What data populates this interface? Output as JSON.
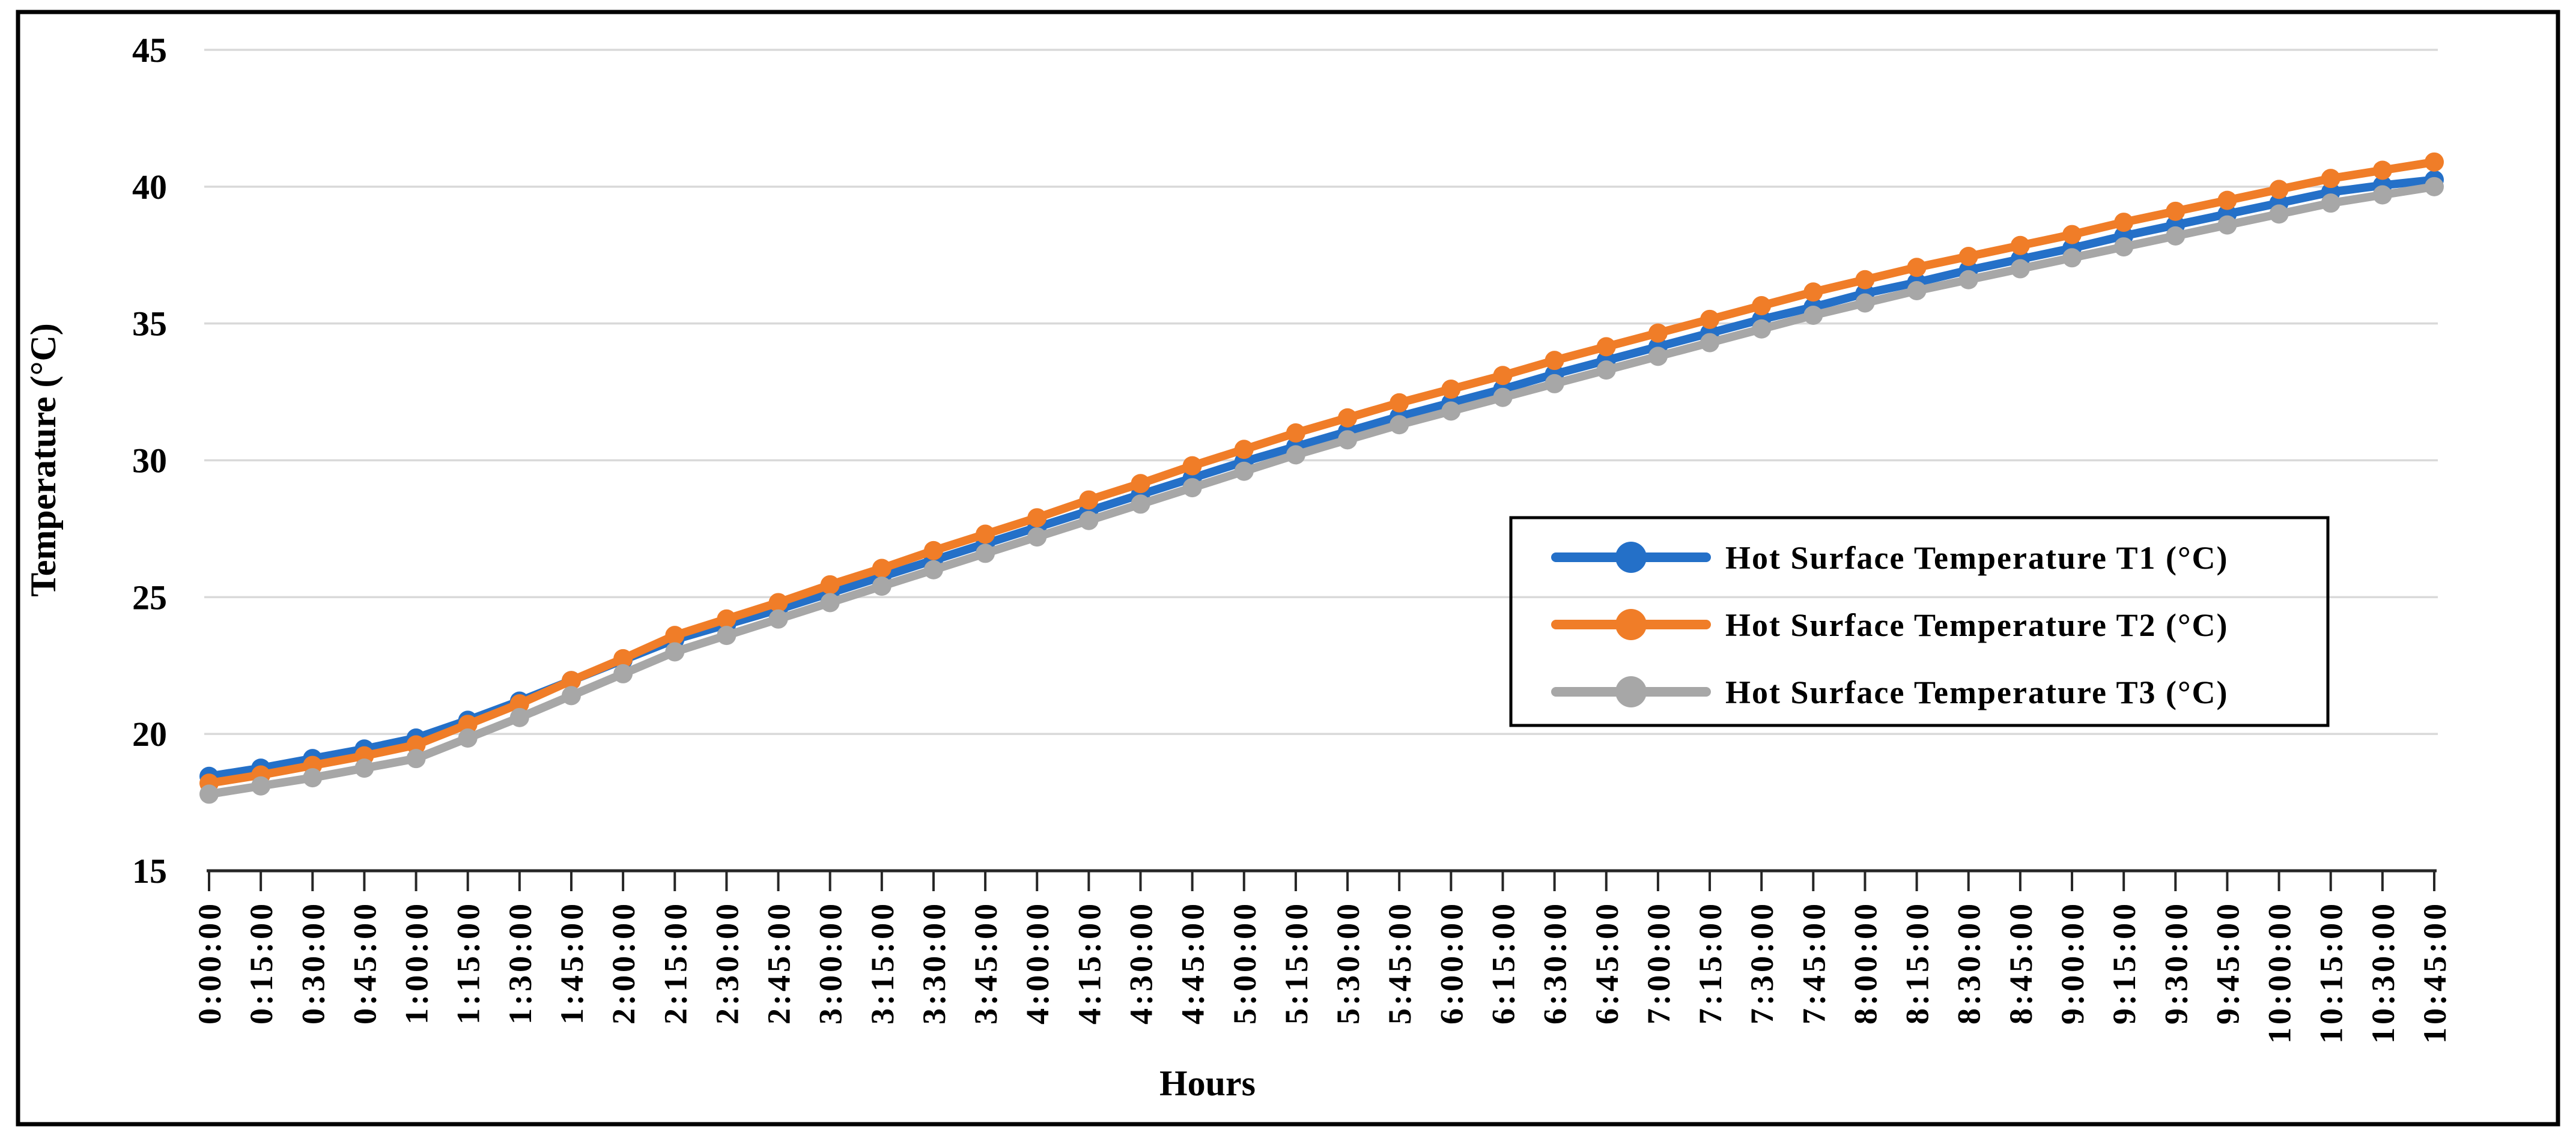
{
  "figure": {
    "background": "#ffffff",
    "border_color": "#000000",
    "axis_color": "#262626",
    "gridline_color": "#D9D9D9",
    "text_color": "#000000"
  },
  "chart_data": {
    "type": "line",
    "title": "",
    "xlabel": "Hours",
    "ylabel": "Temperature (°C)",
    "ylim": [
      15,
      45
    ],
    "yticks": [
      15,
      20,
      25,
      30,
      35,
      40,
      45
    ],
    "grid": "horizontal",
    "legend_position": "middle-right",
    "legend_border_color": "#000000",
    "legend_fill": "transparent",
    "categories": [
      "0:00:00",
      "0:15:00",
      "0:30:00",
      "0:45:00",
      "1:00:00",
      "1:15:00",
      "1:30:00",
      "1:45:00",
      "2:00:00",
      "2:15:00",
      "2:30:00",
      "2:45:00",
      "3:00:00",
      "3:15:00",
      "3:30:00",
      "3:45:00",
      "4:00:00",
      "4:15:00",
      "4:30:00",
      "4:45:00",
      "5:00:00",
      "5:15:00",
      "5:30:00",
      "5:45:00",
      "6:00:00",
      "6:15:00",
      "6:30:00",
      "6:45:00",
      "7:00:00",
      "7:15:00",
      "7:30:00",
      "7:45:00",
      "8:00:00",
      "8:15:00",
      "8:30:00",
      "8:45:00",
      "9:00:00",
      "9:15:00",
      "9:30:00",
      "9:45:00",
      "10:00:00",
      "10:15:00",
      "10:30:00",
      "10:45:00"
    ],
    "series": [
      {
        "name": "Hot Surface Temperature  T1 (°C)",
        "color": "#2470C8",
        "marker": "circle",
        "values": [
          18.45,
          18.75,
          19.1,
          19.45,
          19.85,
          20.5,
          21.2,
          21.95,
          22.7,
          23.45,
          24.0,
          24.55,
          25.15,
          25.75,
          26.35,
          26.95,
          27.55,
          28.15,
          28.75,
          29.35,
          29.95,
          30.5,
          31.05,
          31.6,
          32.1,
          32.6,
          33.15,
          33.65,
          34.15,
          34.65,
          35.15,
          35.6,
          36.1,
          36.5,
          36.95,
          37.35,
          37.75,
          38.2,
          38.6,
          39.0,
          39.4,
          39.8,
          40.05,
          40.25
        ]
      },
      {
        "name": "Hot Surface Temperature  T2 (°C)",
        "color": "#F07D28",
        "marker": "circle",
        "values": [
          18.2,
          18.5,
          18.85,
          19.2,
          19.6,
          20.35,
          21.1,
          21.95,
          22.75,
          23.6,
          24.2,
          24.8,
          25.45,
          26.05,
          26.7,
          27.3,
          27.9,
          28.55,
          29.15,
          29.8,
          30.4,
          31.0,
          31.55,
          32.1,
          32.6,
          33.1,
          33.65,
          34.15,
          34.65,
          35.15,
          35.65,
          36.15,
          36.6,
          37.05,
          37.45,
          37.85,
          38.25,
          38.7,
          39.1,
          39.5,
          39.9,
          40.3,
          40.6,
          40.9
        ]
      },
      {
        "name": "Hot Surface Temperature  T3 (°C)",
        "color": "#A7A7A7",
        "marker": "circle",
        "values": [
          17.8,
          18.1,
          18.4,
          18.75,
          19.1,
          19.85,
          20.6,
          21.4,
          22.2,
          23.0,
          23.6,
          24.2,
          24.8,
          25.4,
          26.0,
          26.6,
          27.2,
          27.8,
          28.4,
          29.0,
          29.6,
          30.2,
          30.75,
          31.3,
          31.8,
          32.3,
          32.8,
          33.3,
          33.8,
          34.3,
          34.8,
          35.3,
          35.75,
          36.2,
          36.6,
          37.0,
          37.4,
          37.8,
          38.2,
          38.6,
          39.0,
          39.4,
          39.7,
          40.0
        ]
      }
    ]
  }
}
